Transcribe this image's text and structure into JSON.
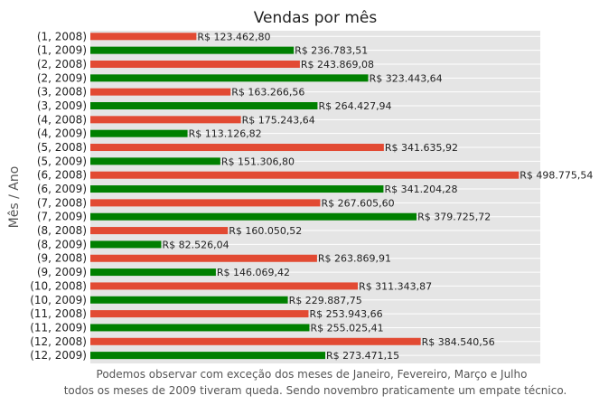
{
  "chart_data": {
    "type": "bar",
    "orientation": "horizontal",
    "title": "Vendas por mês",
    "xlabel": "",
    "ylabel": "Mês / Ano",
    "xlim": [
      0,
      523714
    ],
    "grid": true,
    "legend": "none",
    "colors": {
      "2008": "#E24A33",
      "2009": "#008000"
    },
    "background": "#E5E5E5",
    "caption": [
      "Podemos observar com exceção dos meses de Janeiro, Fevereiro, Março e Julho",
      "todos os meses de 2009 tiveram queda. Sendo novembro praticamente um empate técnico."
    ],
    "bars": [
      {
        "category": "(1, 2008)",
        "year": "2008",
        "value": 123462.8,
        "label": "R$ 123.462,80"
      },
      {
        "category": "(1, 2009)",
        "year": "2009",
        "value": 236783.51,
        "label": "R$ 236.783,51"
      },
      {
        "category": "(2, 2008)",
        "year": "2008",
        "value": 243869.08,
        "label": "R$ 243.869,08"
      },
      {
        "category": "(2, 2009)",
        "year": "2009",
        "value": 323443.64,
        "label": "R$ 323.443,64"
      },
      {
        "category": "(3, 2008)",
        "year": "2008",
        "value": 163266.56,
        "label": "R$ 163.266,56"
      },
      {
        "category": "(3, 2009)",
        "year": "2009",
        "value": 264427.94,
        "label": "R$ 264.427,94"
      },
      {
        "category": "(4, 2008)",
        "year": "2008",
        "value": 175243.64,
        "label": "R$ 175.243,64"
      },
      {
        "category": "(4, 2009)",
        "year": "2009",
        "value": 113126.82,
        "label": "R$ 113.126,82"
      },
      {
        "category": "(5, 2008)",
        "year": "2008",
        "value": 341635.92,
        "label": "R$ 341.635,92"
      },
      {
        "category": "(5, 2009)",
        "year": "2009",
        "value": 151306.8,
        "label": "R$ 151.306,80"
      },
      {
        "category": "(6, 2008)",
        "year": "2008",
        "value": 498775.54,
        "label": "R$ 498.775,54"
      },
      {
        "category": "(6, 2009)",
        "year": "2009",
        "value": 341204.28,
        "label": "R$ 341.204,28"
      },
      {
        "category": "(7, 2008)",
        "year": "2008",
        "value": 267605.6,
        "label": "R$ 267.605,60"
      },
      {
        "category": "(7, 2009)",
        "year": "2009",
        "value": 379725.72,
        "label": "R$ 379.725,72"
      },
      {
        "category": "(8, 2008)",
        "year": "2008",
        "value": 160050.52,
        "label": "R$ 160.050,52"
      },
      {
        "category": "(8, 2009)",
        "year": "2009",
        "value": 82526.04,
        "label": "R$ 82.526,04"
      },
      {
        "category": "(9, 2008)",
        "year": "2008",
        "value": 263869.91,
        "label": "R$ 263.869,91"
      },
      {
        "category": "(9, 2009)",
        "year": "2009",
        "value": 146069.42,
        "label": "R$ 146.069,42"
      },
      {
        "category": "(10, 2008)",
        "year": "2008",
        "value": 311343.87,
        "label": "R$ 311.343,87"
      },
      {
        "category": "(10, 2009)",
        "year": "2009",
        "value": 229887.75,
        "label": "R$ 229.887,75"
      },
      {
        "category": "(11, 2008)",
        "year": "2008",
        "value": 253943.66,
        "label": "R$ 253.943,66"
      },
      {
        "category": "(11, 2009)",
        "year": "2009",
        "value": 255025.41,
        "label": "R$ 255.025,41"
      },
      {
        "category": "(12, 2008)",
        "year": "2008",
        "value": 384540.56,
        "label": "R$ 384.540,56"
      },
      {
        "category": "(12, 2009)",
        "year": "2009",
        "value": 273471.15,
        "label": "R$ 273.471,15"
      }
    ]
  }
}
